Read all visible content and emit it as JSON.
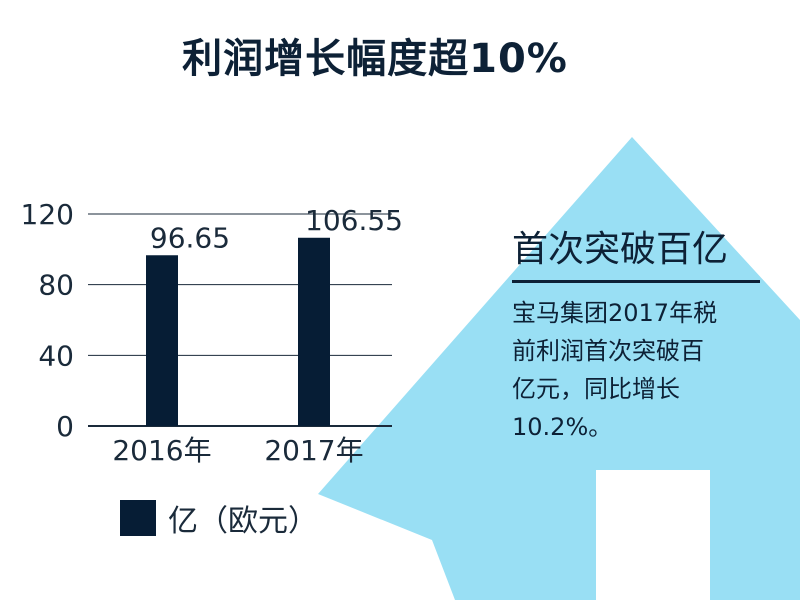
{
  "title": "利润增长幅度超10%",
  "colors": {
    "bar": "#061d35",
    "arrow": "#99dff4",
    "text": "#0d2136"
  },
  "chart_data": {
    "type": "bar",
    "categories": [
      "2016年",
      "2017年"
    ],
    "values": [
      96.65,
      106.55
    ],
    "value_labels": [
      "96.65",
      "106.55"
    ],
    "yticks": [
      0,
      40,
      80,
      120
    ],
    "ylim": [
      0,
      120
    ],
    "grid": true,
    "legend": {
      "position": "bottom-left",
      "label": "亿（欧元）"
    }
  },
  "side_panel": {
    "heading": "首次突破百亿",
    "body_lines": [
      "宝马集团2017年税",
      "前利润首次突破百",
      "亿元，同比增长",
      "10.2%。"
    ]
  }
}
